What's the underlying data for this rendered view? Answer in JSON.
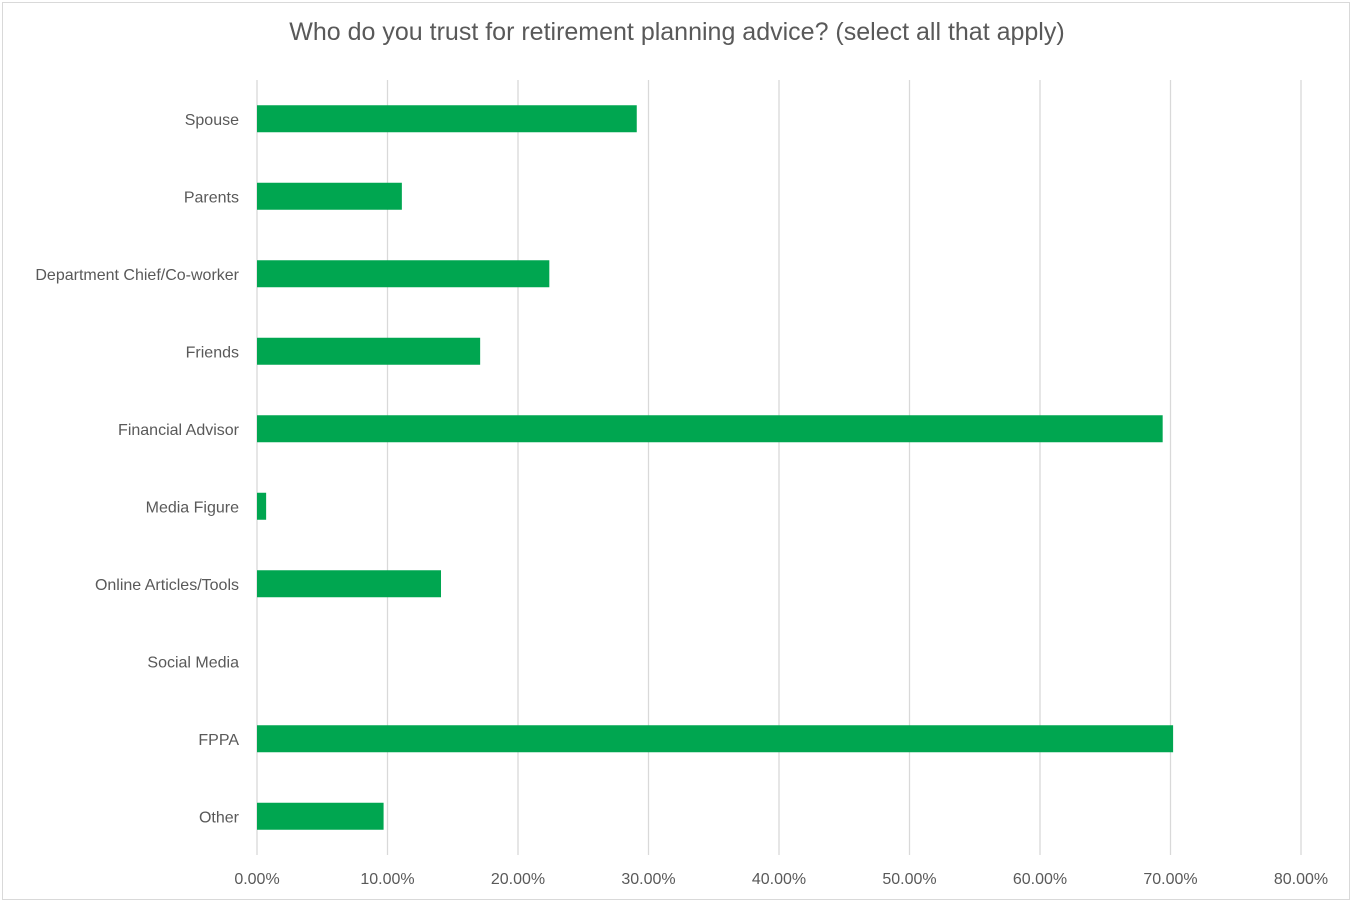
{
  "chart_data": {
    "type": "bar",
    "orientation": "horizontal",
    "title": "Who do you trust for retirement planning advice? (select all that apply)",
    "categories": [
      "Spouse",
      "Parents",
      "Department Chief/Co-worker",
      "Friends",
      "Financial Advisor",
      "Media Figure",
      "Online Articles/Tools",
      "Social Media",
      "FPPA",
      "Other"
    ],
    "values": [
      0.291,
      0.111,
      0.224,
      0.171,
      0.694,
      0.007,
      0.141,
      0.0,
      0.702,
      0.097
    ],
    "xlim": [
      0,
      0.8
    ],
    "ticks": [
      0,
      0.1,
      0.2,
      0.3,
      0.4,
      0.5,
      0.6,
      0.7,
      0.8
    ],
    "tick_labels": [
      "0.00%",
      "10.00%",
      "20.00%",
      "30.00%",
      "40.00%",
      "50.00%",
      "60.00%",
      "70.00%",
      "80.00%"
    ],
    "grid": "vertical",
    "legend": "none",
    "bar_color": "#00a650",
    "grid_color": "#d9d9d9"
  }
}
